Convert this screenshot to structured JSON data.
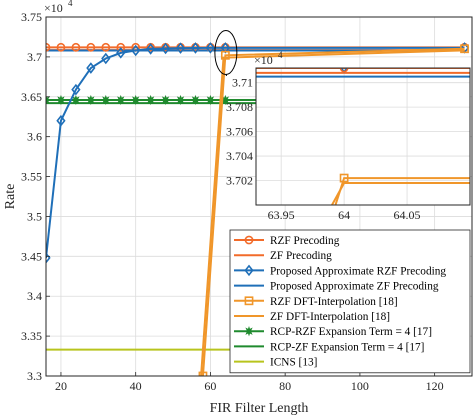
{
  "chart_data": {
    "type": "line",
    "xlabel": "FIR Filter Length",
    "ylabel": "Rate",
    "xlim": [
      16,
      130
    ],
    "ylim": [
      33000,
      37500
    ],
    "exponent": {
      "base": "×10",
      "power": "4"
    },
    "xticks": [
      {
        "value": 20,
        "label": "20"
      },
      {
        "value": 40,
        "label": "40"
      },
      {
        "value": 60,
        "label": "60"
      },
      {
        "value": 80,
        "label": "80"
      },
      {
        "value": 100,
        "label": "100"
      },
      {
        "value": 120,
        "label": "120"
      }
    ],
    "yticks": [
      {
        "value": 33000,
        "label": "3.3"
      },
      {
        "value": 33500,
        "label": "3.35"
      },
      {
        "value": 34000,
        "label": "3.4"
      },
      {
        "value": 34500,
        "label": "3.45"
      },
      {
        "value": 35000,
        "label": "3.5"
      },
      {
        "value": 35500,
        "label": "3.55"
      },
      {
        "value": 36000,
        "label": "3.6"
      },
      {
        "value": 36500,
        "label": "3.65"
      },
      {
        "value": 37000,
        "label": "3.7"
      },
      {
        "value": 37500,
        "label": "3.75"
      }
    ],
    "grid": true,
    "legend_position": "bottom-right",
    "series": [
      {
        "name": "RZF Precoding",
        "color": "#f26b2a",
        "marker": "circle",
        "x": [
          16,
          20,
          24,
          28,
          32,
          36,
          40,
          44,
          48,
          52,
          56,
          60,
          64,
          128
        ],
        "y": [
          37120,
          37120,
          37120,
          37120,
          37120,
          37120,
          37120,
          37120,
          37120,
          37120,
          37120,
          37120,
          37120,
          37120
        ]
      },
      {
        "name": "ZF Precoding",
        "color": "#f26b2a",
        "marker": "none",
        "x": [
          16,
          128
        ],
        "y": [
          37085,
          37085
        ]
      },
      {
        "name": "Proposed Approximate RZF Precoding",
        "color": "#1f6fb8",
        "marker": "diamond",
        "x": [
          16,
          20,
          24,
          28,
          32,
          36,
          40,
          44,
          48,
          52,
          56,
          60,
          64,
          128
        ],
        "y": [
          34480,
          36200,
          36590,
          36860,
          36980,
          37050,
          37080,
          37100,
          37105,
          37110,
          37112,
          37113,
          37113,
          37113
        ]
      },
      {
        "name": "Proposed Approximate ZF Precoding",
        "color": "#1f6fb8",
        "marker": "none",
        "x": [
          16,
          128
        ],
        "y": [
          37080,
          37080
        ]
      },
      {
        "name": "RZF DFT-Interpolation [18]",
        "color": "#f0962a",
        "marker": "square",
        "x": [
          58,
          64,
          128
        ],
        "y": [
          33000,
          37020,
          37102
        ]
      },
      {
        "name": "ZF DFT-Interpolation [18]",
        "color": "#f0962a",
        "marker": "none",
        "x": [
          57.5,
          63.5,
          128
        ],
        "y": [
          33000,
          36990,
          37082
        ]
      },
      {
        "name": "RCP-RZF Expansion Term = 4 [17]",
        "color": "#1f8a2e",
        "marker": "star",
        "x": [
          16,
          20,
          24,
          28,
          32,
          36,
          40,
          44,
          48,
          52,
          56,
          60,
          64,
          128
        ],
        "y": [
          36460,
          36460,
          36460,
          36460,
          36460,
          36460,
          36460,
          36460,
          36460,
          36460,
          36460,
          36460,
          36460,
          36460
        ]
      },
      {
        "name": "RCP-ZF Expansion Term = 4 [17]",
        "color": "#1f8a2e",
        "marker": "none",
        "x": [
          16,
          128
        ],
        "y": [
          36420,
          36420
        ]
      },
      {
        "name": "ICNS [13]",
        "color": "#b8c41d",
        "marker": "none",
        "x": [
          16,
          128
        ],
        "y": [
          33330,
          33330
        ]
      }
    ],
    "inset": {
      "xlim": [
        63.93,
        64.1
      ],
      "ylim": [
        37000,
        37112
      ],
      "exponent": {
        "base": "×10",
        "power": "4"
      },
      "xticks": [
        {
          "value": 63.95,
          "label": "63.95"
        },
        {
          "value": 64,
          "label": "64"
        },
        {
          "value": 64.05,
          "label": "64.05"
        }
      ],
      "yticks": [
        {
          "value": 37020,
          "label": "3.702"
        },
        {
          "value": 37040,
          "label": "3.704"
        },
        {
          "value": 37060,
          "label": "3.706"
        },
        {
          "value": 37080,
          "label": "3.708"
        },
        {
          "value": 37100,
          "label": "3.71"
        }
      ]
    }
  }
}
